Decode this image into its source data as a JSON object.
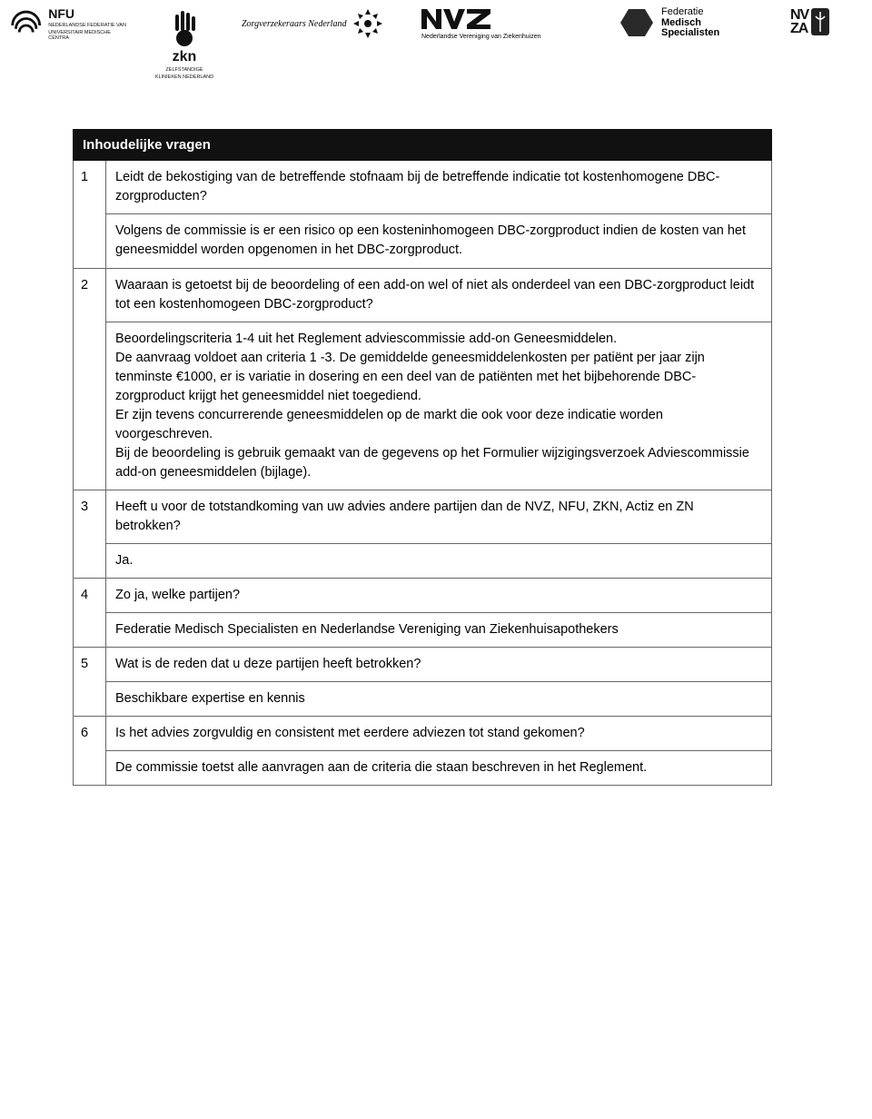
{
  "logos": {
    "nfu": {
      "main": "NFU",
      "sub1": "NEDERLANDSE FEDERATIE VAN",
      "sub2": "UNIVERSITAIR MEDISCHE CENTRA"
    },
    "zkn": {
      "main": "zkn",
      "sub1": "ZELFSTANDIGE",
      "sub2": "KLINIEKEN NEDERLAND"
    },
    "zn": {
      "text": "Zorgverzekeraars Nederland"
    },
    "nvz": {
      "main": "NVZ",
      "sub": "Nederlandse Vereniging van Ziekenhuizen"
    },
    "fms": {
      "l1": "Federatie",
      "l2": "Medisch",
      "l3": "Specialisten"
    },
    "nvza": {
      "l1": "NV",
      "l2": "ZA"
    }
  },
  "table": {
    "header": "Inhoudelijke vragen",
    "rows": [
      {
        "n": "1",
        "q": "Leidt de bekostiging van de betreffende stofnaam bij de betreffende indicatie tot kostenhomogene DBC-zorgproducten?",
        "a": "Volgens de commissie is er een risico op een kosteninhomogeen DBC-zorgproduct indien de kosten van het geneesmiddel worden opgenomen in het DBC-zorgproduct."
      },
      {
        "n": "2",
        "q": "Waaraan is getoetst bij de beoordeling of een add-on wel of niet als onderdeel van een DBC-zorgproduct leidt tot een kostenhomogeen DBC-zorgproduct?",
        "a": "Beoordelingscriteria 1-4  uit het Reglement adviescommissie add-on Geneesmiddelen.\nDe aanvraag voldoet aan criteria 1 -3. De gemiddelde geneesmiddelenkosten per patiënt per jaar zijn tenminste €1000, er is variatie in dosering  en een deel van de patiënten met het bijbehorende DBC-zorgproduct krijgt het geneesmiddel niet toegediend.\nEr zijn tevens concurrerende geneesmiddelen op de markt die ook voor deze indicatie worden voorgeschreven.\nBij de beoordeling is gebruik gemaakt van de gegevens op het Formulier wijzigingsverzoek Adviescommissie  add-on geneesmiddelen (bijlage)."
      },
      {
        "n": "3",
        "q": "Heeft u voor de totstandkoming van uw advies andere partijen dan de NVZ, NFU, ZKN, Actiz en ZN betrokken?",
        "a": "Ja."
      },
      {
        "n": "4",
        "q": "Zo ja, welke partijen?",
        "a": "Federatie Medisch Specialisten en Nederlandse Vereniging van Ziekenhuisapothekers"
      },
      {
        "n": "5",
        "q": "Wat is de reden dat u deze partijen heeft betrokken?",
        "a": "Beschikbare expertise en kennis"
      },
      {
        "n": "6",
        "q": "Is het advies zorgvuldig en consistent met eerdere adviezen tot stand gekomen?",
        "a": "De commissie toetst alle aanvragen aan de criteria die staan beschreven  in het Reglement."
      }
    ]
  },
  "style": {
    "page_bg": "#ffffff",
    "text_color": "#000000",
    "header_bg": "#111111",
    "header_fg": "#ffffff",
    "border_color": "#666666",
    "body_font_size": 14.5,
    "header_font_size": 15,
    "font_family": "Verdana, Geneva, sans-serif"
  }
}
